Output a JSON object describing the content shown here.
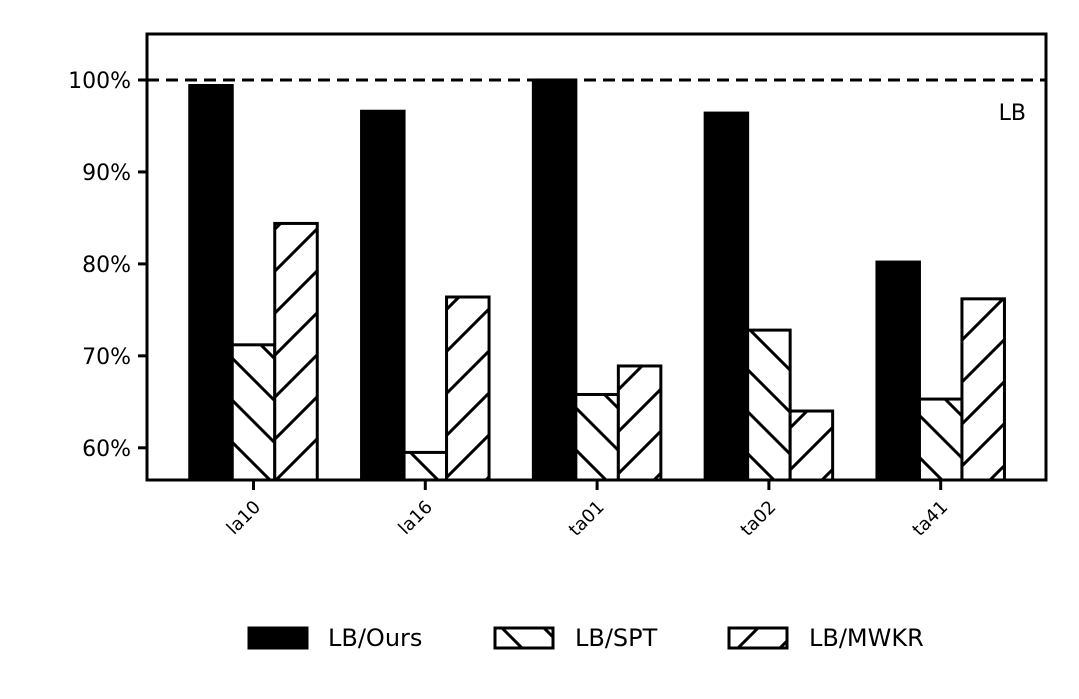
{
  "chart_data": {
    "type": "bar",
    "categories": [
      "la10",
      "la16",
      "ta01",
      "ta02",
      "ta41"
    ],
    "series": [
      {
        "name": "LB/Ours",
        "values": [
          99.4,
          96.6,
          100.0,
          96.4,
          80.2
        ],
        "fill": "solid"
      },
      {
        "name": "LB/SPT",
        "values": [
          71.2,
          59.5,
          65.8,
          72.8,
          65.3
        ],
        "fill": "hatch-back"
      },
      {
        "name": "LB/MWKR",
        "values": [
          84.4,
          76.4,
          68.9,
          64.0,
          76.2
        ],
        "fill": "hatch-forward"
      }
    ],
    "ylim": [
      56.5,
      105
    ],
    "yticks": [
      60,
      70,
      80,
      90,
      100
    ],
    "ytick_format": "%",
    "reference_line": {
      "value": 100,
      "label": "LB",
      "style": "dashed"
    },
    "legend": {
      "placement": "bottom-center"
    },
    "grid": false,
    "colors": {
      "bar": "#000000",
      "background": "#ffffff",
      "hatch_fill": "#ffffff"
    }
  }
}
